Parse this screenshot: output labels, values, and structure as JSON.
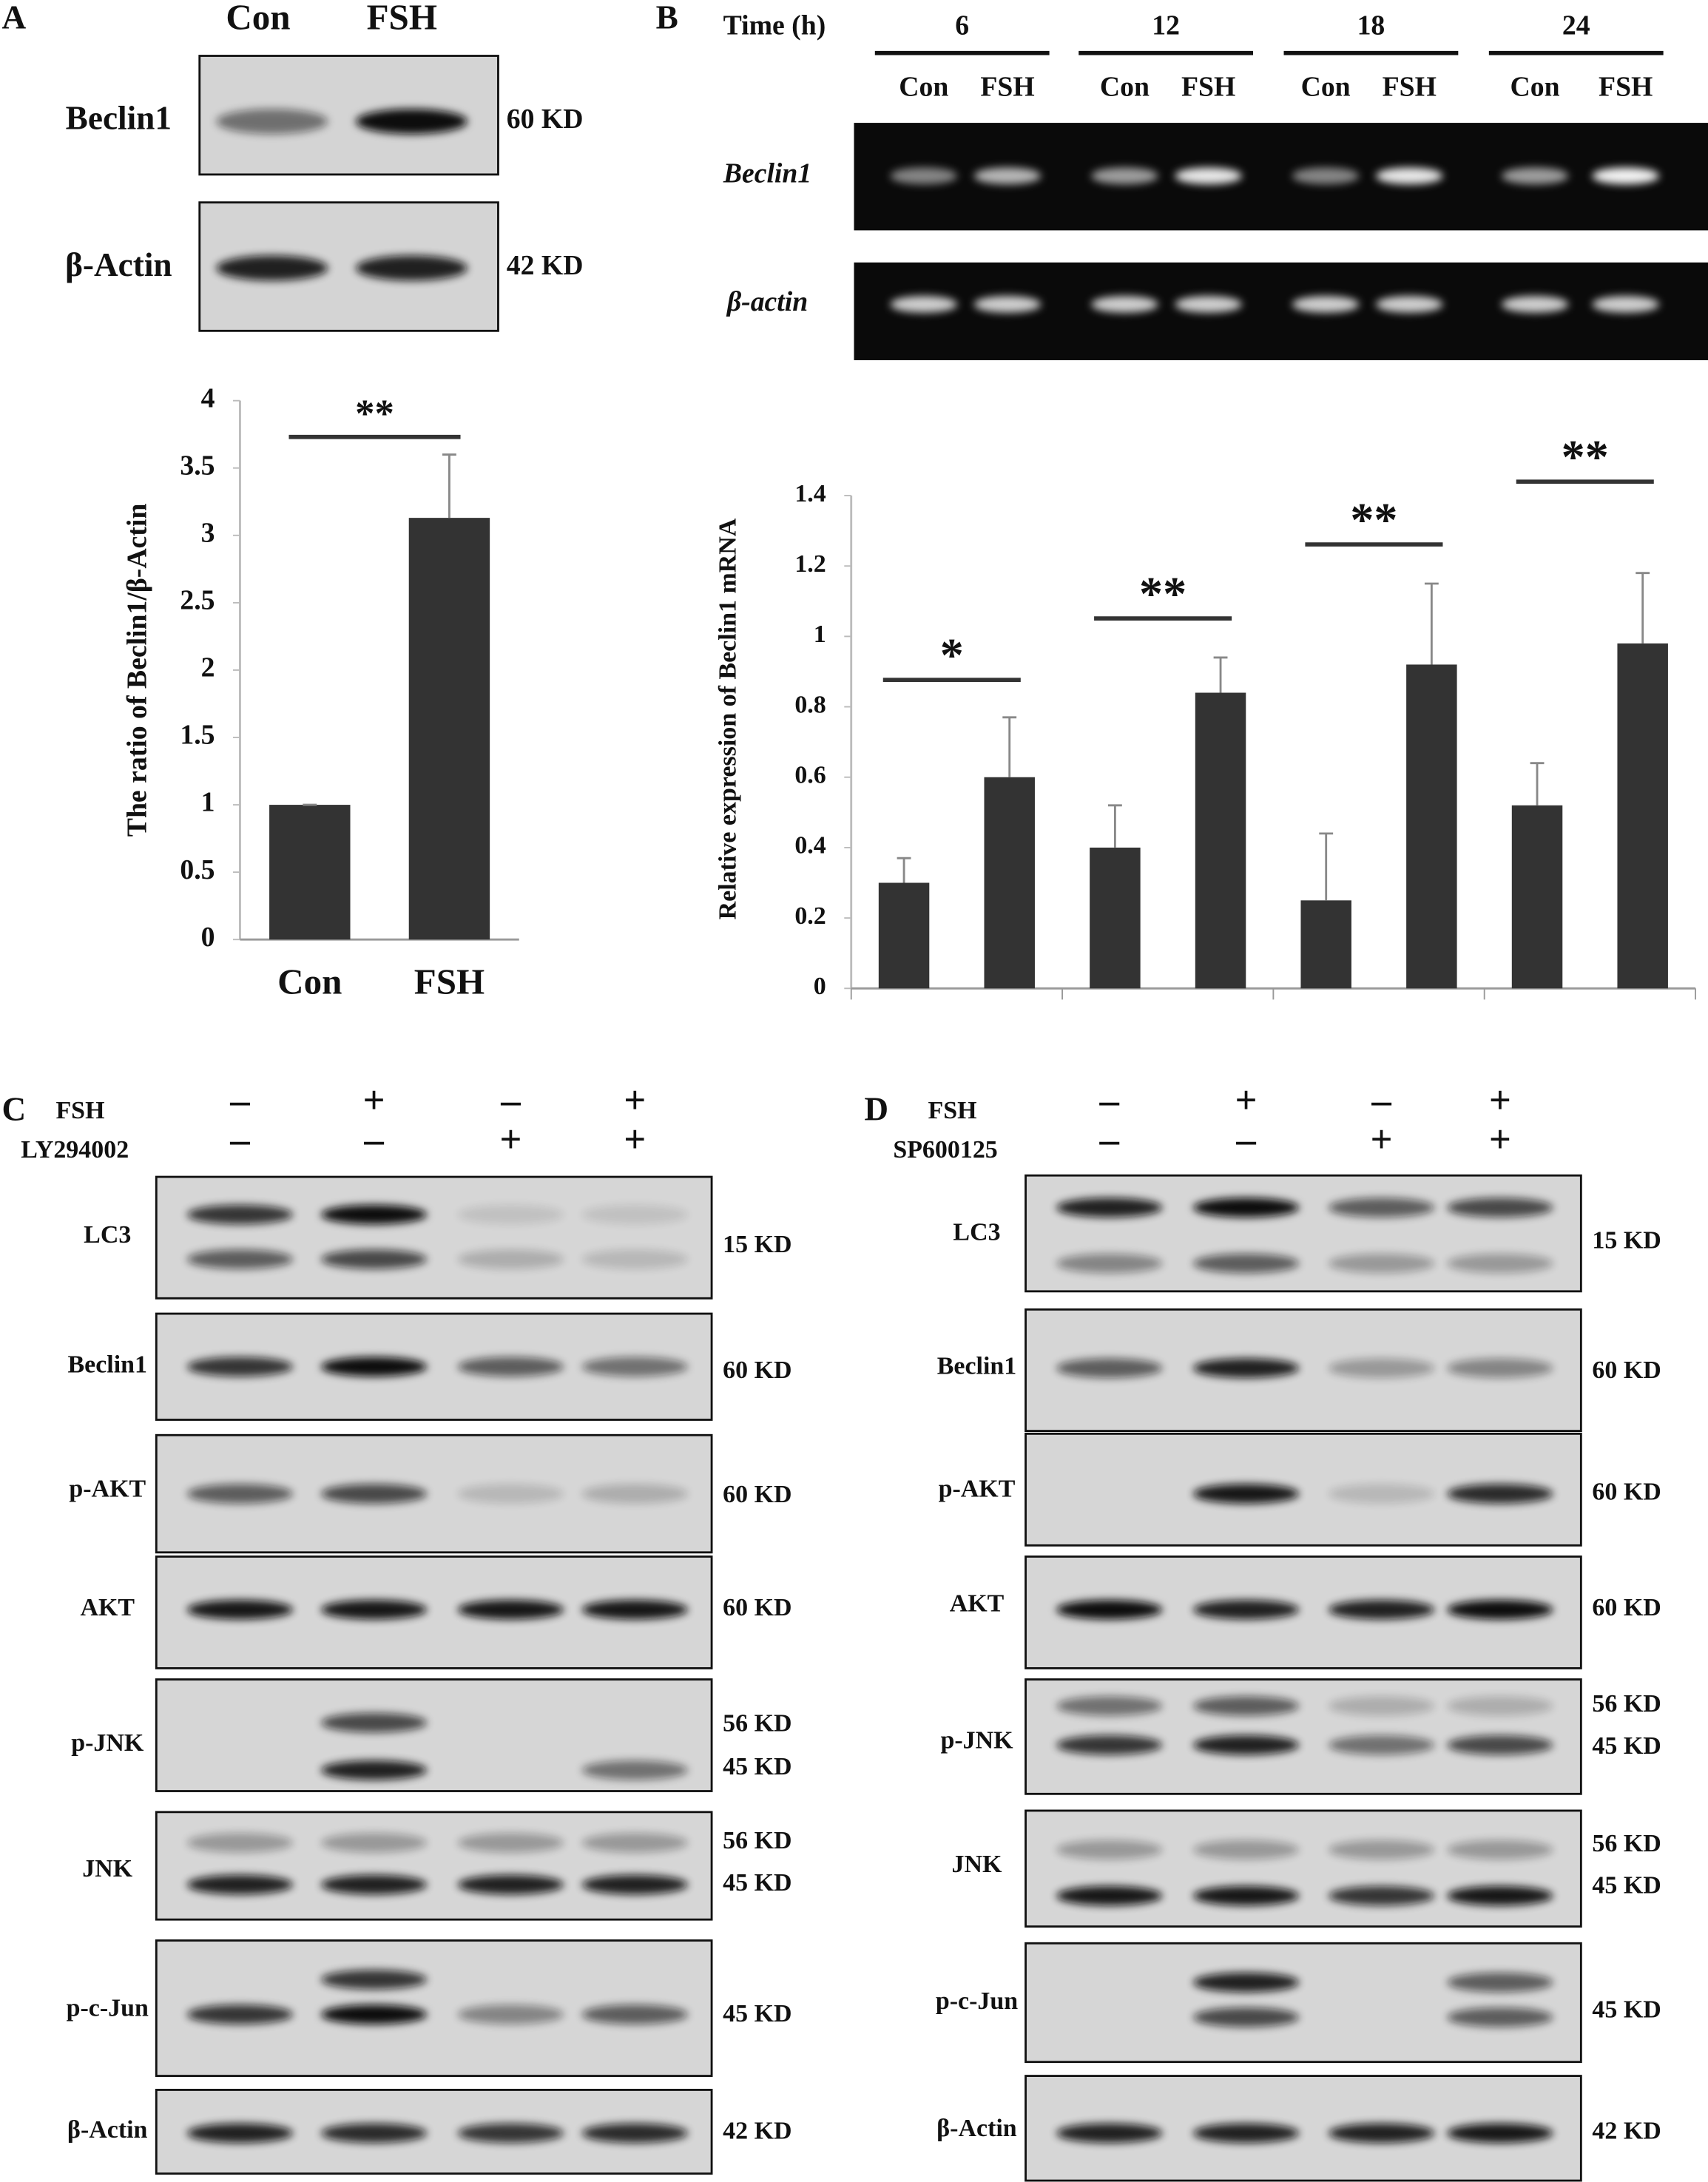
{
  "panel_labels": [
    "A",
    "B",
    "C",
    "D"
  ],
  "panel_a": {
    "lanes": [
      "Con",
      "FSH"
    ],
    "blots": [
      {
        "label": "Beclin1",
        "size": "60 KD"
      },
      {
        "label": "β-Actin",
        "size": "42 KD"
      }
    ]
  },
  "panel_b": {
    "time_label": "Time (h)",
    "times": [
      "6",
      "12",
      "18",
      "24"
    ],
    "lanes": [
      "Con",
      "FSH"
    ],
    "genes": [
      "Beclin1",
      "β-actin"
    ]
  },
  "panel_c": {
    "treatments": [
      {
        "name": "FSH",
        "signs": [
          "–",
          "+",
          "–",
          "+"
        ]
      },
      {
        "name": "LY294002",
        "signs": [
          "–",
          "–",
          "+",
          "+"
        ]
      }
    ],
    "blots": [
      {
        "label": "LC3",
        "sizes": [
          "15 KD"
        ]
      },
      {
        "label": "Beclin1",
        "sizes": [
          "60 KD"
        ]
      },
      {
        "label": "p-AKT",
        "sizes": [
          "60 KD"
        ]
      },
      {
        "label": "AKT",
        "sizes": [
          "60 KD"
        ]
      },
      {
        "label": "p-JNK",
        "sizes": [
          "56 KD",
          "45 KD"
        ]
      },
      {
        "label": "JNK",
        "sizes": [
          "56 KD",
          "45 KD"
        ]
      },
      {
        "label": "p-c-Jun",
        "sizes": [
          "45 KD"
        ]
      },
      {
        "label": "β-Actin",
        "sizes": [
          "42 KD"
        ]
      }
    ]
  },
  "panel_d": {
    "treatments": [
      {
        "name": "FSH",
        "signs": [
          "–",
          "+",
          "–",
          "+"
        ]
      },
      {
        "name": "SP600125",
        "signs": [
          "–",
          "–",
          "+",
          "+"
        ]
      }
    ],
    "blots": [
      {
        "label": "LC3",
        "sizes": [
          "15 KD"
        ]
      },
      {
        "label": "Beclin1",
        "sizes": [
          "60 KD"
        ]
      },
      {
        "label": "p-AKT",
        "sizes": [
          "60 KD"
        ]
      },
      {
        "label": "AKT",
        "sizes": [
          "60 KD"
        ]
      },
      {
        "label": "p-JNK",
        "sizes": [
          "56 KD",
          "45 KD"
        ]
      },
      {
        "label": "JNK",
        "sizes": [
          "56 KD",
          "45 KD"
        ]
      },
      {
        "label": "p-c-Jun",
        "sizes": [
          "45 KD"
        ]
      },
      {
        "label": "β-Actin",
        "sizes": [
          "42 KD"
        ]
      }
    ]
  },
  "chart_data": [
    {
      "type": "bar",
      "ylabel": "The ratio of Beclin1/β-Actin",
      "categories": [
        "Con",
        "FSH"
      ],
      "values": [
        1,
        3.13
      ],
      "errors": [
        0,
        0.47
      ],
      "color": "#333333",
      "ylim": [
        0,
        4
      ],
      "yticks": [
        0,
        0.5,
        1,
        1.5,
        2,
        2.5,
        3,
        3.5,
        4
      ],
      "annotations": [
        "**"
      ]
    },
    {
      "type": "bar",
      "ylabel": "Relative expression of Beclin1 mRNA",
      "categories": [
        null,
        null,
        null,
        null,
        null,
        null,
        null,
        null
      ],
      "values": [
        0.3,
        0.6,
        0.4,
        0.84,
        0.25,
        0.92,
        0.52,
        0.98
      ],
      "errors": [
        0.07,
        0.17,
        0.12,
        0.1,
        0.19,
        0.23,
        0.12,
        0.2
      ],
      "color": "#333333",
      "ylim": [
        0,
        1.4
      ],
      "yticks": [
        0,
        0.2,
        0.4,
        0.6,
        0.8,
        1,
        1.2,
        1.4
      ],
      "annotations": [
        "*",
        "**",
        "**",
        "**"
      ]
    }
  ]
}
